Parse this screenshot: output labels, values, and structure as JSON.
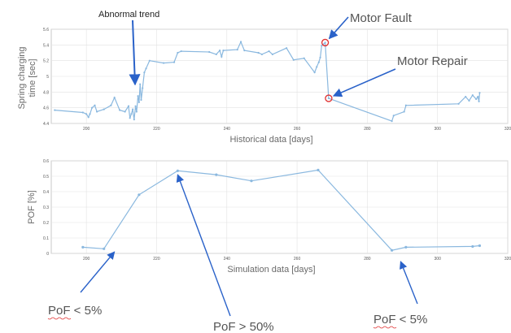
{
  "chart_data": [
    {
      "type": "line",
      "xlabel": "Historical data [days]",
      "ylabel_lines": [
        "Spring charging",
        "time [sec]"
      ],
      "xlim": [
        190,
        320
      ],
      "ylim": [
        4.4,
        5.6
      ],
      "xticks": [
        200,
        220,
        240,
        260,
        280,
        300,
        320
      ],
      "yticks": [
        4.4,
        4.6,
        4.8,
        5.0,
        5.2,
        5.4,
        5.6
      ],
      "ytick_labels": [
        "4.4",
        "4.6",
        "4.8",
        "5",
        "5.2",
        "5.4",
        "5.6"
      ],
      "grid": true,
      "color": "#8ab8df",
      "x": [
        191,
        199,
        200,
        200.6,
        201,
        201.6,
        202.4,
        203,
        205,
        207,
        208,
        209.5,
        211,
        212,
        212.4,
        212.8,
        213.2,
        213.6,
        214,
        214.3,
        214.7,
        215,
        215.3,
        215.6,
        216,
        216.5,
        217,
        218,
        222,
        225,
        226,
        227,
        235,
        237,
        238,
        238.5,
        239,
        243,
        244,
        245,
        249,
        250,
        252,
        253,
        257,
        259,
        262,
        265,
        265.6,
        266.2,
        266.6,
        267,
        268,
        269,
        287,
        287.5,
        290.5,
        291,
        306,
        308,
        309,
        310,
        311,
        311.5,
        311.8,
        312
      ],
      "y": [
        4.57,
        4.54,
        4.52,
        4.48,
        4.52,
        4.6,
        4.63,
        4.55,
        4.58,
        4.63,
        4.73,
        4.57,
        4.55,
        4.62,
        4.47,
        4.52,
        4.58,
        4.45,
        4.62,
        4.55,
        4.75,
        4.67,
        4.9,
        4.7,
        4.85,
        5.05,
        5.1,
        5.2,
        5.17,
        5.18,
        5.3,
        5.32,
        5.31,
        5.28,
        5.33,
        5.25,
        5.33,
        5.34,
        5.44,
        5.33,
        5.3,
        5.28,
        5.32,
        5.28,
        5.36,
        5.21,
        5.23,
        5.05,
        5.12,
        5.18,
        5.24,
        5.39,
        5.43,
        4.72,
        4.43,
        4.5,
        4.55,
        4.63,
        4.65,
        4.74,
        4.69,
        4.76,
        4.71,
        4.74,
        4.68,
        4.79
      ],
      "annotations": {
        "abnormal_trend": "Abnormal trend",
        "motor_fault": "Motor Fault",
        "motor_repair": "Motor Repair"
      }
    },
    {
      "type": "line",
      "xlabel": "Simulation data [days]",
      "ylabel": "POF [%]",
      "xlim": [
        190,
        320
      ],
      "ylim": [
        0,
        0.6
      ],
      "xticks": [
        200,
        220,
        240,
        260,
        280,
        300,
        320
      ],
      "yticks": [
        0,
        0.1,
        0.2,
        0.3,
        0.4,
        0.5,
        0.6
      ],
      "ytick_labels": [
        "0",
        "0.1",
        "0.2",
        "0.3",
        "0.4",
        "0.5",
        "0.6"
      ],
      "grid": true,
      "color": "#8ab8df",
      "x": [
        199,
        205,
        215,
        226,
        237,
        247,
        266,
        287,
        291,
        310,
        312
      ],
      "y": [
        0.04,
        0.03,
        0.38,
        0.535,
        0.51,
        0.47,
        0.54,
        0.02,
        0.04,
        0.045,
        0.05
      ],
      "annotations": {
        "pof_low_left": "PoF < 5%",
        "pof_high": "PoF > 50%",
        "pof_low_right": "PoF < 5%"
      }
    }
  ],
  "colors": {
    "line": "#8ab8df",
    "arrow": "#2a62c9",
    "circle": "#e03030",
    "grid": "#e2e2e2",
    "axis": "#444444"
  }
}
